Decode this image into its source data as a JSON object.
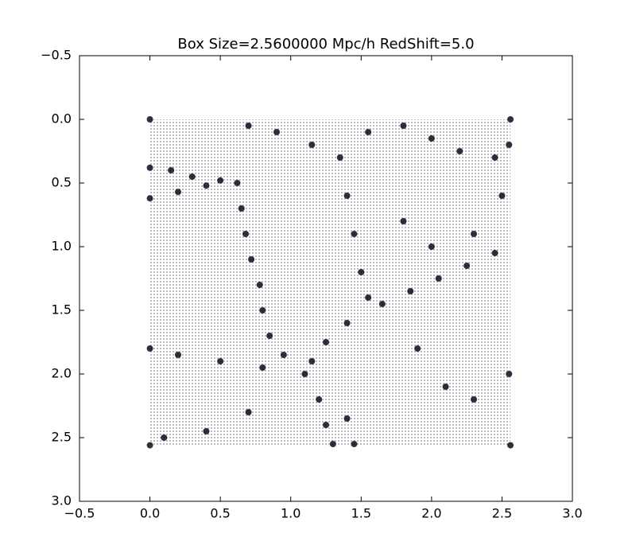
{
  "chart_data": {
    "type": "scatter",
    "title": "Box Size=2.5600000 Mpc/h  RedShift=5.0",
    "xlim": [
      -0.5,
      3.0
    ],
    "ylim": [
      3.0,
      -0.5
    ],
    "xticks": [
      {
        "value": -0.5,
        "label": "−0.5"
      },
      {
        "value": 0,
        "label": "0.0"
      },
      0.5,
      {
        "value": 1,
        "label": "1.0"
      },
      1.5,
      {
        "value": 2,
        "label": "2.0"
      },
      2.5,
      {
        "value": 3,
        "label": "3.0"
      }
    ],
    "yticks": [
      {
        "value": -0.5,
        "label": "−0.5"
      },
      {
        "value": 0,
        "label": "0.0"
      },
      0.5,
      {
        "value": 1,
        "label": "1.0"
      },
      1.5,
      {
        "value": 2,
        "label": "2.0"
      },
      2.5,
      {
        "value": 3,
        "label": "3.0"
      }
    ],
    "color": "#0b0b1e",
    "x": [
      0,
      2.56,
      0,
      2.56,
      0.0,
      0.15,
      0.3,
      0.5,
      0.62,
      0.2,
      0.4,
      0.0,
      0.65,
      0.68,
      0.72,
      0.78,
      0.8,
      0.85,
      0.95,
      1.1,
      1.35,
      1.4,
      1.45,
      1.5,
      1.55,
      1.65,
      1.4,
      1.25,
      1.15,
      1.2,
      1.25,
      1.3,
      1.45,
      1.4,
      0.8,
      0.5,
      0.2,
      0.0,
      1.85,
      2.05,
      2.25,
      2.45,
      1.55,
      1.8,
      2.0,
      2.2,
      2.45,
      1.15,
      0.9,
      0.7,
      1.9,
      2.1,
      2.3,
      2.55,
      0.7,
      0.4,
      0.1,
      2.55,
      2.5,
      2.3,
      2.0,
      1.8
    ],
    "y": [
      0,
      0,
      2.56,
      2.56,
      0.38,
      0.4,
      0.45,
      0.48,
      0.5,
      0.57,
      0.52,
      0.62,
      0.7,
      0.9,
      1.1,
      1.3,
      1.5,
      1.7,
      1.85,
      2.0,
      0.3,
      0.6,
      0.9,
      1.2,
      1.4,
      1.45,
      1.6,
      1.75,
      1.9,
      2.2,
      2.4,
      2.55,
      2.55,
      2.35,
      1.95,
      1.9,
      1.85,
      1.8,
      1.35,
      1.25,
      1.15,
      1.05,
      0.1,
      0.05,
      0.15,
      0.25,
      0.3,
      0.2,
      0.1,
      0.05,
      1.8,
      2.1,
      2.2,
      2.0,
      2.3,
      2.45,
      2.5,
      0.2,
      0.6,
      0.9,
      1.0,
      0.8
    ]
  }
}
